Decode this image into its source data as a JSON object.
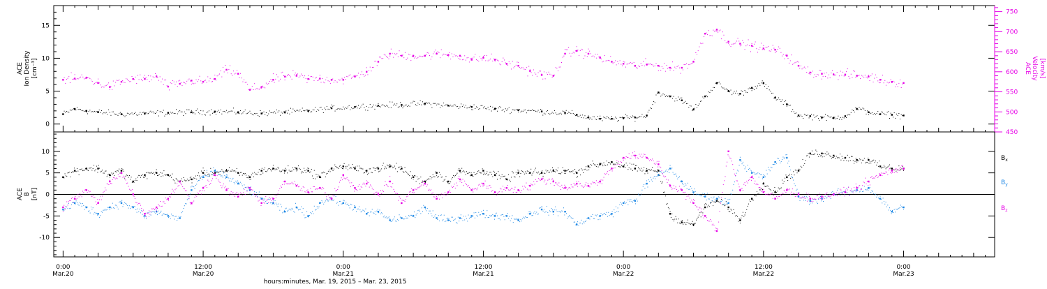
{
  "colors": {
    "black": "#000000",
    "magenta": "#e600e6",
    "blue": "#1e88e5"
  },
  "time_axis": {
    "title": "hours:minutes, Mar. 19, 2015 – Mar. 23, 2015",
    "range_hours": [
      -0.8,
      79.8
    ],
    "major_ticks": [
      {
        "t": 0,
        "time": "0:00",
        "date": "Mar.20"
      },
      {
        "t": 12,
        "time": "12:00",
        "date": "Mar.20"
      },
      {
        "t": 24,
        "time": "0:00",
        "date": "Mar.21"
      },
      {
        "t": 36,
        "time": "12:00",
        "date": "Mar.21"
      },
      {
        "t": 48,
        "time": "0:00",
        "date": "Mar.22"
      },
      {
        "t": 60,
        "time": "12:00",
        "date": "Mar.22"
      },
      {
        "t": 72,
        "time": "0:00",
        "date": "Mar.23"
      }
    ]
  },
  "chart_data": [
    {
      "type": "scatter",
      "panel": "ion-density-velocity",
      "left_axis": {
        "label_lines": [
          "ACE",
          "Ion Density",
          "[cm⁻³]"
        ],
        "range": [
          -1.2,
          18
        ],
        "ticks": [
          0,
          5,
          10,
          15
        ]
      },
      "right_axis": {
        "label_lines": [
          "ACE",
          "Velocity",
          "[km/s]"
        ],
        "range": [
          450,
          765
        ],
        "ticks": [
          450,
          500,
          550,
          600,
          650,
          700,
          750
        ]
      },
      "series": [
        {
          "axis": "left",
          "color": "black",
          "x": [
            0,
            1,
            2,
            3,
            5,
            7,
            9,
            11,
            13,
            15,
            17,
            19,
            21,
            23,
            25,
            27,
            29,
            31,
            33,
            35,
            37,
            39,
            41,
            43,
            44,
            45,
            46,
            47,
            48,
            49,
            50,
            51,
            52,
            53,
            54,
            55,
            56,
            57,
            58,
            59,
            60,
            61,
            62,
            63,
            64,
            65,
            66,
            67,
            68,
            69,
            70,
            71,
            72
          ],
          "y": [
            1.5,
            2.3,
            2.0,
            1.8,
            1.5,
            1.6,
            1.7,
            1.8,
            1.9,
            1.8,
            1.6,
            1.8,
            2.0,
            2.4,
            2.6,
            2.8,
            2.9,
            3.1,
            2.8,
            2.6,
            2.3,
            2.1,
            1.9,
            1.7,
            1.4,
            1.0,
            0.8,
            0.8,
            0.9,
            1.0,
            1.3,
            4.8,
            4.2,
            3.6,
            2.2,
            4.2,
            6.2,
            5.0,
            4.6,
            5.5,
            6.2,
            4.0,
            3.0,
            1.3,
            1.2,
            1.0,
            0.9,
            1.2,
            2.3,
            1.8,
            1.5,
            1.4,
            1.3
          ]
        },
        {
          "axis": "right",
          "color": "magenta",
          "x": [
            0,
            1,
            2,
            3,
            4,
            5,
            6,
            7,
            8,
            9,
            10,
            11,
            12,
            13,
            14,
            15,
            16,
            17,
            18,
            19,
            20,
            21,
            22,
            23,
            24,
            25,
            26,
            27,
            28,
            29,
            30,
            31,
            32,
            33,
            34,
            35,
            36,
            37,
            38,
            39,
            40,
            41,
            42,
            43,
            44,
            45,
            46,
            47,
            48,
            49,
            50,
            51,
            52,
            53,
            54,
            55,
            56,
            57,
            58,
            59,
            60,
            61,
            62,
            63,
            64,
            65,
            66,
            67,
            68,
            69,
            70,
            71,
            72
          ],
          "y": [
            580,
            583,
            585,
            572,
            562,
            575,
            582,
            582,
            588,
            563,
            570,
            578,
            575,
            582,
            605,
            595,
            555,
            562,
            580,
            588,
            590,
            582,
            583,
            580,
            580,
            588,
            600,
            625,
            645,
            640,
            640,
            640,
            645,
            642,
            640,
            630,
            635,
            630,
            620,
            615,
            602,
            592,
            590,
            645,
            652,
            645,
            635,
            625,
            620,
            615,
            618,
            615,
            610,
            610,
            625,
            695,
            705,
            675,
            670,
            665,
            658,
            655,
            640,
            615,
            598,
            595,
            593,
            593,
            590,
            588,
            580,
            575,
            572
          ]
        }
      ]
    },
    {
      "type": "scatter",
      "panel": "imf-components",
      "left_axis": {
        "label_lines": [
          "ACE",
          "B",
          "[nT]"
        ],
        "range": [
          -14.5,
          14.5
        ],
        "ticks": [
          -10,
          -5,
          0,
          5,
          10
        ]
      },
      "zero_line": true,
      "series": [
        {
          "name": "Bx",
          "color": "black",
          "x": [
            0,
            1,
            2,
            3,
            4,
            5,
            6,
            7,
            8,
            9,
            10,
            11,
            12,
            13,
            14,
            15,
            16,
            17,
            18,
            19,
            20,
            21,
            22,
            23,
            24,
            25,
            26,
            27,
            28,
            29,
            30,
            31,
            32,
            33,
            34,
            35,
            36,
            37,
            38,
            39,
            40,
            41,
            42,
            43,
            44,
            45,
            46,
            47,
            48,
            49,
            50,
            51,
            52,
            53,
            54,
            55,
            56,
            57,
            58,
            59,
            60,
            61,
            62,
            63,
            64,
            65,
            66,
            67,
            68,
            69,
            70,
            71,
            72
          ],
          "y": [
            4.0,
            5.5,
            6.0,
            6.0,
            4.5,
            5.5,
            3.0,
            4.5,
            5.0,
            4.5,
            3.0,
            3.5,
            5.0,
            5.0,
            5.5,
            5.0,
            4.0,
            5.5,
            6.0,
            5.5,
            6.0,
            5.5,
            4.0,
            6.0,
            6.5,
            6.0,
            5.5,
            6.0,
            6.5,
            6.0,
            4.0,
            3.0,
            5.0,
            3.0,
            5.5,
            4.5,
            5.5,
            4.5,
            3.5,
            5.0,
            5.0,
            5.0,
            5.5,
            5.5,
            5.0,
            6.5,
            7.0,
            7.5,
            6.5,
            6.0,
            5.5,
            5.5,
            -4.5,
            -6.5,
            -7.0,
            -3.0,
            -1.5,
            -3.0,
            -6.0,
            -1.0,
            2.5,
            0.5,
            4.0,
            5.5,
            9.5,
            9.5,
            9.0,
            8.5,
            8.0,
            8.0,
            6.5,
            6.0,
            6.0
          ]
        },
        {
          "name": "By",
          "color": "blue",
          "x": [
            0,
            1,
            2,
            3,
            4,
            5,
            6,
            7,
            8,
            9,
            10,
            11,
            12,
            13,
            14,
            15,
            16,
            17,
            18,
            19,
            20,
            21,
            22,
            23,
            24,
            25,
            26,
            27,
            28,
            29,
            30,
            31,
            32,
            33,
            34,
            35,
            36,
            37,
            38,
            39,
            40,
            41,
            42,
            43,
            44,
            45,
            46,
            47,
            48,
            49,
            50,
            51,
            52,
            53,
            54,
            55,
            56,
            57,
            58,
            59,
            60,
            61,
            62,
            63,
            64,
            65,
            66,
            67,
            68,
            69,
            70,
            71,
            72
          ],
          "y": [
            -3.5,
            -2.0,
            -3.0,
            -4.5,
            -3.0,
            -2.0,
            -3.0,
            -5.0,
            -4.0,
            -5.0,
            -5.5,
            1.0,
            4.0,
            5.5,
            4.0,
            2.5,
            1.0,
            -1.0,
            -2.0,
            -4.0,
            -3.0,
            -5.0,
            -2.0,
            -1.0,
            -2.0,
            -3.0,
            -4.5,
            -4.0,
            -6.0,
            -5.5,
            -5.0,
            -3.0,
            -5.5,
            -6.0,
            -5.5,
            -5.0,
            -4.5,
            -5.0,
            -5.0,
            -6.0,
            -4.5,
            -3.5,
            -4.0,
            -4.0,
            -7.0,
            -5.5,
            -5.0,
            -4.5,
            -2.0,
            -1.5,
            2.5,
            4.5,
            6.0,
            3.0,
            0.5,
            -0.5,
            -1.0,
            -2.0,
            8.0,
            5.0,
            4.0,
            7.5,
            8.5,
            -0.5,
            -1.5,
            -1.0,
            0.0,
            0.5,
            1.0,
            1.5,
            -1.0,
            -4.0,
            -3.0
          ]
        },
        {
          "name": "Bz",
          "color": "magenta",
          "x": [
            0,
            1,
            2,
            3,
            4,
            5,
            6,
            7,
            8,
            9,
            10,
            11,
            12,
            13,
            14,
            15,
            16,
            17,
            18,
            19,
            20,
            21,
            22,
            23,
            24,
            25,
            26,
            27,
            28,
            29,
            30,
            31,
            32,
            33,
            34,
            35,
            36,
            37,
            38,
            39,
            40,
            41,
            42,
            43,
            44,
            45,
            46,
            47,
            48,
            49,
            50,
            51,
            52,
            53,
            54,
            55,
            56,
            57,
            58,
            59,
            60,
            61,
            62,
            63,
            64,
            65,
            66,
            67,
            68,
            69,
            70,
            71,
            72
          ],
          "y": [
            -3.0,
            -1.0,
            1.0,
            -2.0,
            3.0,
            5.0,
            0.0,
            -4.5,
            -3.0,
            -1.0,
            3.0,
            -2.0,
            1.5,
            4.5,
            1.0,
            -0.5,
            1.5,
            -2.0,
            -1.0,
            3.0,
            2.0,
            0.5,
            1.5,
            -1.0,
            4.5,
            1.5,
            2.5,
            0.0,
            3.0,
            -2.0,
            1.0,
            2.5,
            -1.0,
            0.5,
            3.5,
            1.0,
            2.5,
            0.5,
            1.5,
            1.0,
            2.0,
            3.5,
            3.0,
            1.5,
            2.5,
            2.0,
            3.0,
            6.0,
            8.5,
            9.0,
            8.5,
            7.0,
            2.0,
            1.0,
            -2.0,
            -5.0,
            -8.5,
            10.0,
            1.0,
            4.0,
            0.5,
            -1.0,
            1.0,
            0.0,
            -1.0,
            -0.5,
            0.0,
            0.5,
            1.5,
            3.0,
            4.5,
            5.5,
            6.0
          ]
        }
      ],
      "legend": [
        "Bx",
        "By",
        "Bz"
      ]
    }
  ]
}
